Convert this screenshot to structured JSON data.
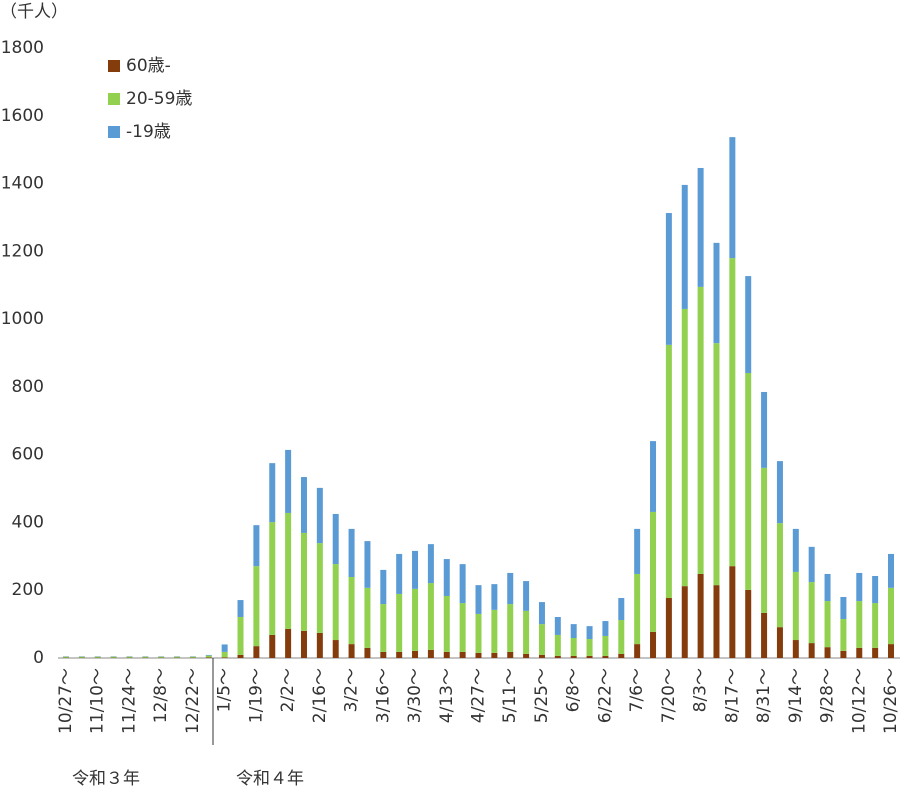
{
  "chart_data": {
    "type": "stacked_bar",
    "unit_label": "（千人）",
    "annotations": [
      "令和３年",
      "令和４年"
    ],
    "categories": [
      "10/27～",
      null,
      "11/10～",
      null,
      "11/24～",
      null,
      "12/8～",
      null,
      "12/22～",
      null,
      "1/5～",
      null,
      "1/19～",
      null,
      "2/2～",
      null,
      "2/16～",
      null,
      "3/2～",
      null,
      "3/16～",
      null,
      "3/30～",
      null,
      "4/13～",
      null,
      "4/27～",
      null,
      "5/11～",
      null,
      "5/25～",
      null,
      "6/8～",
      null,
      "6/22～",
      null,
      "7/6～",
      null,
      "7/20～",
      null,
      "8/3～",
      null,
      "8/17～",
      null,
      "8/31～",
      null,
      "9/14～",
      null,
      "9/28～",
      null,
      "10/12～",
      null,
      "10/26～"
    ],
    "series": [
      {
        "name": "60歳-",
        "color": "#843c0c",
        "values": [
          1,
          1,
          1,
          1,
          1,
          1,
          1,
          1,
          1,
          2,
          2,
          9,
          35,
          68,
          86,
          80,
          74,
          53,
          41,
          30,
          18,
          18,
          21,
          24,
          18,
          18,
          15,
          15,
          18,
          12,
          9,
          6,
          6,
          6,
          6,
          12,
          41,
          77,
          177,
          212,
          248,
          215,
          271,
          201,
          133,
          91,
          53,
          44,
          32,
          21,
          30,
          30,
          41
        ]
      },
      {
        "name": "20-59歳",
        "color": "#92d050",
        "values": [
          3,
          3,
          3,
          3,
          3,
          3,
          3,
          3,
          3,
          5,
          16,
          112,
          236,
          333,
          342,
          289,
          265,
          224,
          198,
          177,
          141,
          171,
          183,
          197,
          165,
          144,
          115,
          127,
          141,
          127,
          91,
          62,
          53,
          50,
          59,
          100,
          207,
          354,
          747,
          818,
          847,
          714,
          909,
          640,
          428,
          307,
          201,
          180,
          136,
          94,
          138,
          132,
          166
        ]
      },
      {
        "name": "-19歳",
        "color": "#5b9bd5",
        "values": [
          1,
          1,
          1,
          1,
          1,
          1,
          1,
          1,
          1,
          2,
          22,
          50,
          121,
          174,
          186,
          165,
          163,
          148,
          142,
          138,
          101,
          118,
          112,
          115,
          109,
          115,
          85,
          76,
          92,
          88,
          65,
          53,
          41,
          38,
          44,
          65,
          133,
          209,
          389,
          366,
          351,
          296,
          357,
          286,
          224,
          183,
          127,
          104,
          80,
          65,
          83,
          80,
          100
        ]
      }
    ],
    "ylim": [
      0,
      1800
    ],
    "yticks": [
      0,
      200,
      400,
      600,
      800,
      1000,
      1200,
      1400,
      1600,
      1800
    ],
    "grid": false,
    "legend": "top-left"
  }
}
